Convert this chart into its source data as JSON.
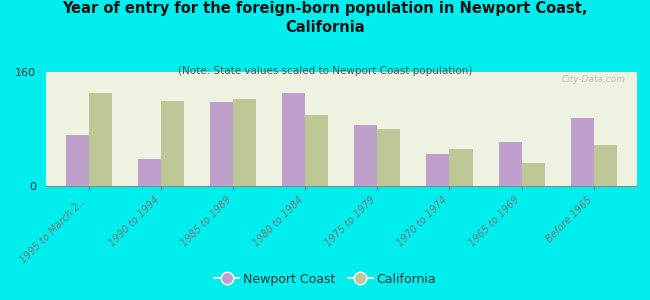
{
  "title": "Year of entry for the foreign-born population in Newport Coast,\nCalifornia",
  "subtitle": "(Note: State values scaled to Newport Coast population)",
  "categories": [
    "1995 to March 2...",
    "1990 to 1994",
    "1985 to 1989",
    "1980 to 1984",
    "1975 to 1979",
    "1970 to 1974",
    "1965 to 1969",
    "Before 1965"
  ],
  "newport_coast": [
    72,
    38,
    118,
    130,
    85,
    45,
    62,
    95
  ],
  "california": [
    130,
    120,
    122,
    100,
    80,
    52,
    32,
    58
  ],
  "newport_color": "#bf9fcc",
  "california_color": "#bec897",
  "background_color": "#00eeee",
  "plot_bg": "#eef2e0",
  "ylim": [
    0,
    160
  ],
  "yticks": [
    0,
    160
  ],
  "legend_labels": [
    "Newport Coast",
    "California"
  ],
  "watermark": "City-Data.com"
}
